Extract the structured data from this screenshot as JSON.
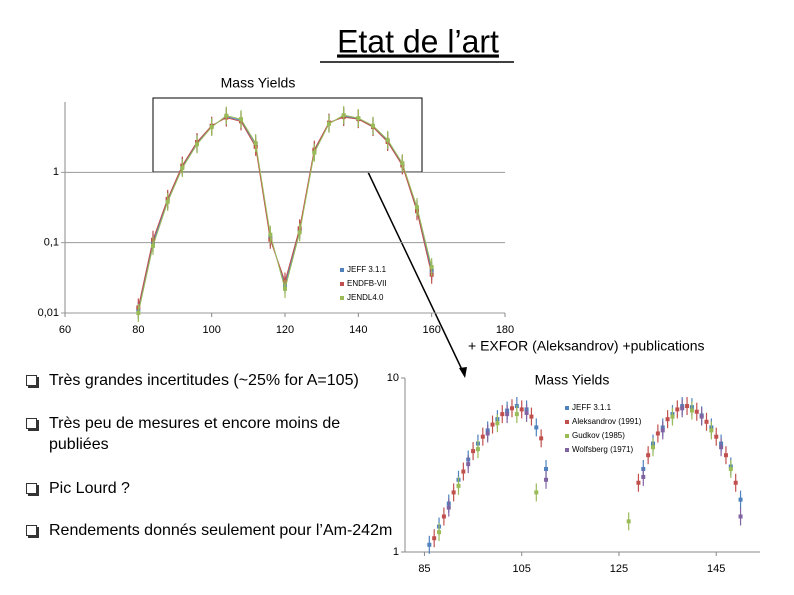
{
  "title": "Etat de l’art",
  "annotation": "+ EXFOR (Aleksandrov) +publications",
  "bullets": [
    "Très grandes incertitudes (~25% for A=105)",
    "Très peu de mesures et encore moins de publiées",
    "Pic Lourd ?",
    "Rendements donnés seulement pour l’Am-242m"
  ],
  "chart_data": [
    {
      "type": "line",
      "title": "Mass Yields",
      "log_y": true,
      "grid": true,
      "legend": "center",
      "xlim": [
        60,
        180
      ],
      "xticks": [
        60,
        80,
        100,
        120,
        140,
        160,
        180
      ],
      "ylim": [
        0.01,
        10
      ],
      "yticks": [
        {
          "value": 0.01,
          "label": "0,01"
        },
        {
          "value": 0.1,
          "label": "0,1"
        },
        1
      ],
      "x": [
        80,
        84,
        88,
        92,
        96,
        100,
        104,
        108,
        112,
        116,
        120,
        124,
        128,
        132,
        136,
        140,
        144,
        148,
        152,
        156,
        160
      ],
      "series": [
        {
          "name": "JEFF 3.1.1",
          "color": "#4f81bd",
          "values": [
            0.011,
            0.1,
            0.4,
            1.2,
            2.6,
            4.5,
            6.2,
            5.5,
            2.5,
            0.12,
            0.025,
            0.15,
            2.0,
            5.0,
            6.3,
            5.8,
            4.5,
            2.8,
            1.3,
            0.3,
            0.04
          ]
        },
        {
          "name": "ENDFB-VII",
          "color": "#c0504d",
          "values": [
            0.012,
            0.11,
            0.42,
            1.25,
            2.7,
            4.6,
            6.0,
            5.3,
            2.3,
            0.11,
            0.028,
            0.16,
            2.1,
            5.1,
            6.1,
            5.7,
            4.4,
            2.7,
            1.25,
            0.28,
            0.035
          ]
        },
        {
          "name": "JENDL4.0",
          "color": "#9bbb59",
          "values": [
            0.01,
            0.09,
            0.38,
            1.15,
            2.5,
            4.4,
            6.4,
            5.7,
            2.6,
            0.13,
            0.022,
            0.14,
            1.9,
            4.9,
            6.5,
            5.9,
            4.6,
            2.9,
            1.35,
            0.32,
            0.045
          ]
        }
      ]
    },
    {
      "type": "scatter",
      "title": "Mass Yields",
      "log_y": true,
      "grid": false,
      "legend": "upper right",
      "xlim": [
        81,
        154
      ],
      "xticks": [
        85,
        105,
        125,
        145
      ],
      "ylim": [
        1,
        10
      ],
      "yticks": [
        1,
        10
      ],
      "series": [
        {
          "name": "JEFF 3.1.1",
          "color": "#4f81bd",
          "x": [
            86,
            88,
            90,
            92,
            94,
            96,
            98,
            100,
            102,
            104,
            106,
            108,
            110,
            130,
            132,
            134,
            136,
            138,
            140,
            142,
            144,
            146,
            148,
            150
          ],
          "values": [
            1.1,
            1.4,
            1.9,
            2.6,
            3.4,
            4.2,
            5.0,
            5.8,
            6.5,
            6.9,
            6.6,
            5.2,
            3.0,
            3.0,
            4.2,
            5.2,
            6.2,
            6.9,
            6.8,
            6.1,
            5.2,
            4.2,
            3.1,
            2.0
          ]
        },
        {
          "name": "Aleksandrov (1991)",
          "color": "#c0504d",
          "x": [
            87,
            89,
            91,
            93,
            95,
            97,
            99,
            101,
            103,
            105,
            107,
            109,
            129,
            131,
            133,
            135,
            137,
            139,
            141,
            143,
            145,
            147,
            149
          ],
          "values": [
            1.2,
            1.6,
            2.2,
            2.9,
            3.8,
            4.6,
            5.4,
            6.2,
            6.7,
            6.6,
            6.0,
            4.5,
            2.5,
            3.6,
            4.8,
            5.8,
            6.6,
            6.9,
            6.4,
            5.6,
            4.6,
            3.6,
            2.5
          ]
        },
        {
          "name": "Gudkov (1985)",
          "color": "#9bbb59",
          "x": [
            88,
            92,
            96,
            100,
            104,
            108,
            127,
            132,
            136,
            140,
            144,
            148
          ],
          "values": [
            1.3,
            2.4,
            3.9,
            5.5,
            6.2,
            2.2,
            1.5,
            4.0,
            6.0,
            6.5,
            5.0,
            3.0
          ]
        },
        {
          "name": "Wolfsberg (1971)",
          "color": "#8064a2",
          "x": [
            90,
            94,
            98,
            102,
            106,
            110,
            130,
            134,
            138,
            142,
            146,
            150
          ],
          "values": [
            1.8,
            3.2,
            4.8,
            6.2,
            6.3,
            2.6,
            2.7,
            5.0,
            6.7,
            6.0,
            4.0,
            1.6
          ]
        }
      ]
    }
  ]
}
